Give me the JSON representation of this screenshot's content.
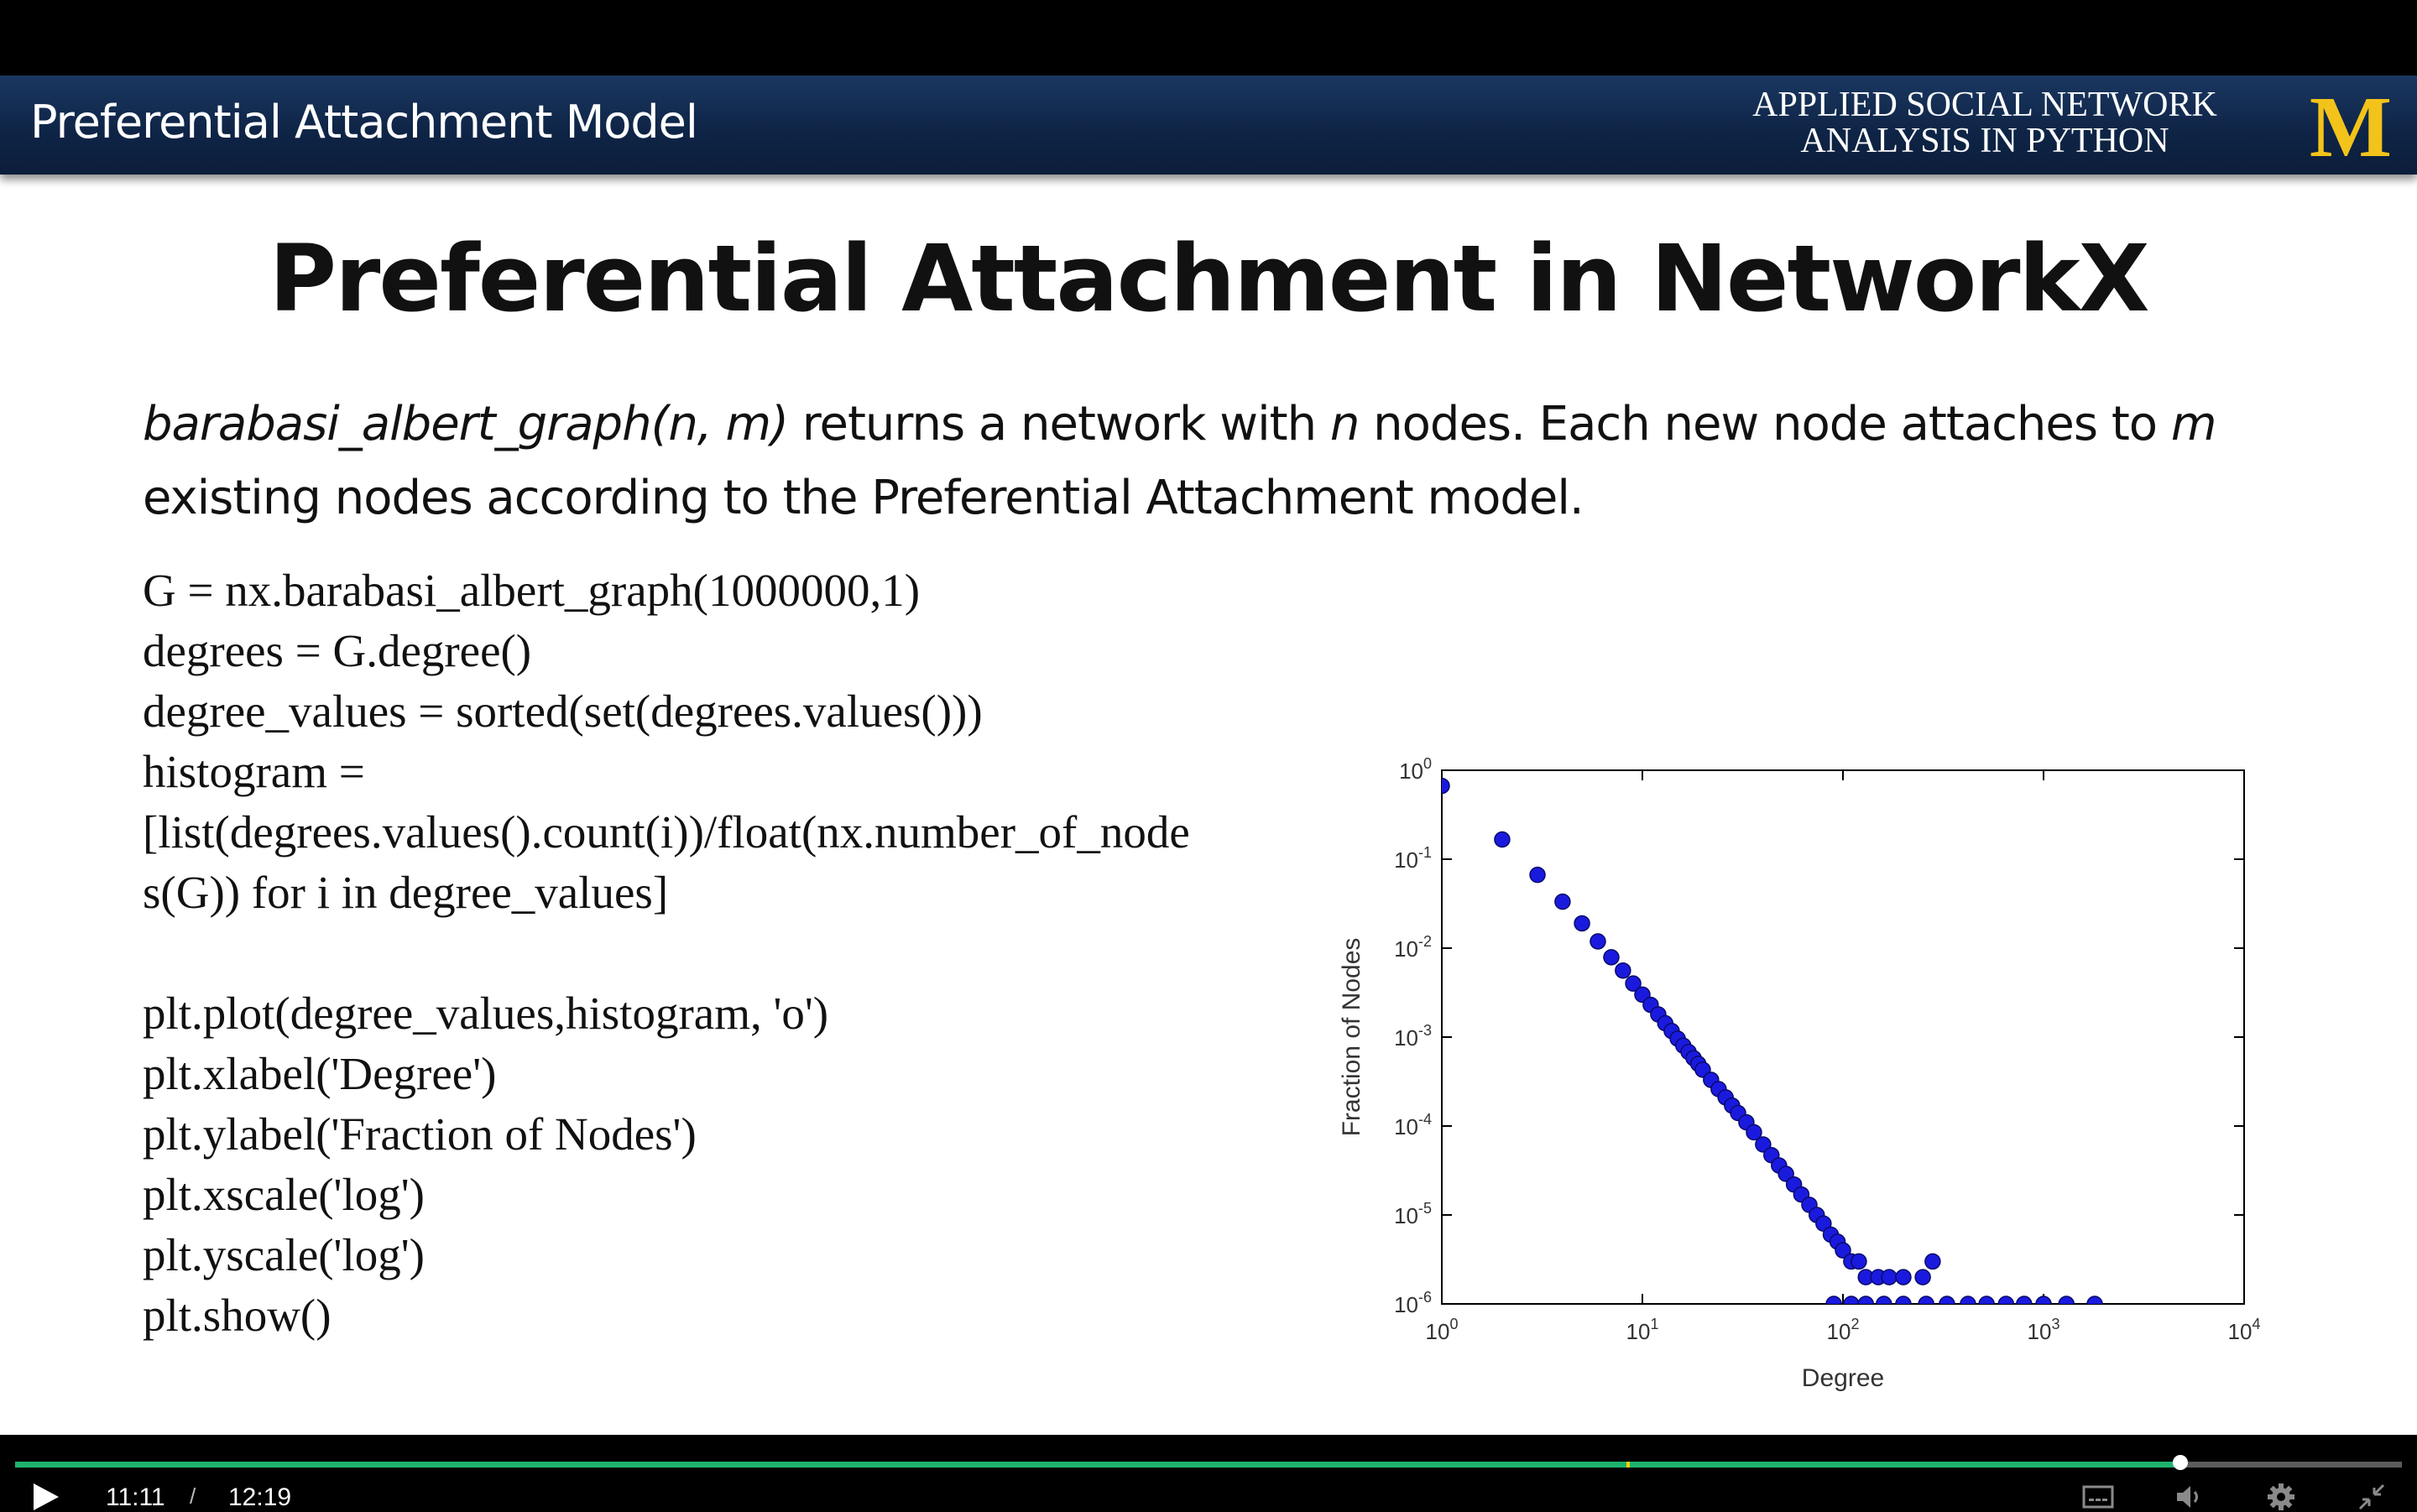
{
  "banner": {
    "title": "Preferential Attachment Model",
    "course_line1": "APPLIED SOCIAL NETWORK",
    "course_line2": "ANALYSIS IN PYTHON",
    "logo_letter": "M",
    "logo_color": "#f2c31a"
  },
  "slide": {
    "title": "Preferential Attachment in NetworkX",
    "description": {
      "function": "barabasi_albert_graph(n, m)",
      "part1": " returns a network with ",
      "n": "n",
      "part2": " nodes. Each new node attaches to ",
      "m": "m",
      "part3": " existing nodes according to the Preferential Attachment model."
    },
    "code_lines": [
      "G = nx.barabasi_albert_graph(1000000,1)",
      "degrees = G.degree()",
      "degree_values = sorted(set(degrees.values()))",
      "histogram =",
      "[list(degrees.values().count(i))/float(nx.number_of_node",
      "s(G)) for i in degree_values]",
      "",
      "plt.plot(degree_values,histogram, 'o')",
      "plt.xlabel('Degree')",
      "plt.ylabel('Fraction of Nodes')",
      "plt.xscale('log')",
      "plt.yscale('log')",
      "plt.show()"
    ]
  },
  "chart_data": {
    "type": "scatter",
    "xlabel": "Degree",
    "ylabel": "Fraction of Nodes",
    "xscale": "log",
    "yscale": "log",
    "xlim": [
      1,
      10000
    ],
    "ylim": [
      1e-06,
      1
    ],
    "x_ticks": [
      "10^0",
      "10^1",
      "10^2",
      "10^3",
      "10^4"
    ],
    "y_ticks": [
      "10^0",
      "10^-1",
      "10^-2",
      "10^-3",
      "10^-4",
      "10^-5",
      "10^-6"
    ],
    "grid": false,
    "marker_color": "#1a1adf",
    "points": [
      [
        1,
        0.6667
      ],
      [
        2,
        0.1667
      ],
      [
        3,
        0.0667
      ],
      [
        4,
        0.0333
      ],
      [
        5,
        0.019
      ],
      [
        6,
        0.0119
      ],
      [
        7,
        0.0079
      ],
      [
        8,
        0.0056
      ],
      [
        9,
        0.004
      ],
      [
        10,
        0.003
      ],
      [
        11,
        0.0023
      ],
      [
        12,
        0.0018
      ],
      [
        13,
        0.00143
      ],
      [
        14,
        0.00117
      ],
      [
        15,
        0.00096
      ],
      [
        16,
        0.0008
      ],
      [
        17,
        0.00068
      ],
      [
        18,
        0.00058
      ],
      [
        19,
        0.0005
      ],
      [
        20,
        0.00043
      ],
      [
        22,
        0.00033
      ],
      [
        24,
        0.00026
      ],
      [
        26,
        0.00021
      ],
      [
        28,
        0.00017
      ],
      [
        30,
        0.00014
      ],
      [
        33,
        0.00011
      ],
      [
        36,
        8.5e-05
      ],
      [
        40,
        6.2e-05
      ],
      [
        44,
        4.7e-05
      ],
      [
        48,
        3.6e-05
      ],
      [
        52,
        2.9e-05
      ],
      [
        57,
        2.2e-05
      ],
      [
        62,
        1.7e-05
      ],
      [
        68,
        1.3e-05
      ],
      [
        74,
        1e-05
      ],
      [
        80,
        8e-06
      ],
      [
        87,
        6e-06
      ],
      [
        94,
        5e-06
      ],
      [
        100,
        4e-06
      ],
      [
        110,
        3e-06
      ],
      [
        120,
        3e-06
      ],
      [
        130,
        2e-06
      ],
      [
        150,
        2e-06
      ],
      [
        170,
        2e-06
      ],
      [
        200,
        2e-06
      ],
      [
        250,
        2e-06
      ],
      [
        280,
        3e-06
      ],
      [
        90,
        1e-06
      ],
      [
        110,
        1e-06
      ],
      [
        130,
        1e-06
      ],
      [
        160,
        1e-06
      ],
      [
        200,
        1e-06
      ],
      [
        260,
        1e-06
      ],
      [
        330,
        1e-06
      ],
      [
        420,
        1e-06
      ],
      [
        520,
        1e-06
      ],
      [
        650,
        1e-06
      ],
      [
        800,
        1e-06
      ],
      [
        1000,
        1e-06
      ],
      [
        1300,
        1e-06
      ],
      [
        1800,
        1e-06
      ]
    ]
  },
  "player": {
    "current_time": "11:11",
    "separator": "/",
    "total_time": "12:19",
    "progress": 0.907,
    "chapter_marker": 0.675,
    "accent_color": "#1fb36e",
    "icons": [
      "play-icon",
      "captions-icon",
      "volume-icon",
      "settings-gear-icon",
      "exit-fullscreen-icon"
    ]
  }
}
